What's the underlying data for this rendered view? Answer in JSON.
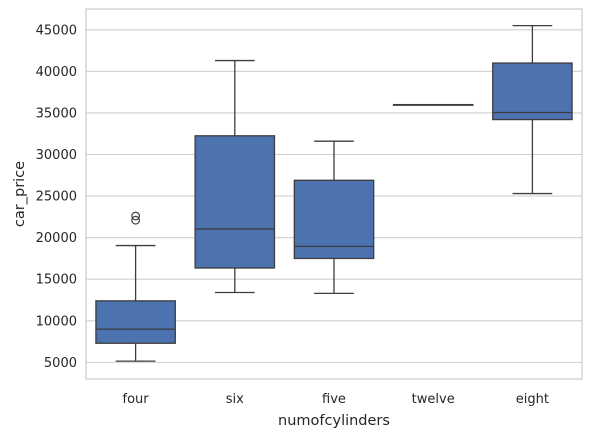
{
  "chart_data": {
    "type": "box",
    "xlabel": "numofcylinders",
    "ylabel": "car_price",
    "categories": [
      "four",
      "six",
      "five",
      "twelve",
      "eight"
    ],
    "ylim": [
      3000,
      47500
    ],
    "yticks": [
      5000,
      10000,
      15000,
      20000,
      25000,
      30000,
      35000,
      40000,
      45000
    ],
    "grid": "horizontal",
    "box_color": "#4c72b0",
    "boxes": [
      {
        "category": "four",
        "whisker_low": 5150,
        "q1": 7300,
        "median": 9000,
        "q3": 12400,
        "whisker_high": 19050,
        "outliers": [
          22100,
          22600
        ]
      },
      {
        "category": "six",
        "whisker_low": 13400,
        "q1": 16350,
        "median": 21050,
        "q3": 32250,
        "whisker_high": 41300,
        "outliers": []
      },
      {
        "category": "five",
        "whisker_low": 13300,
        "q1": 17500,
        "median": 18950,
        "q3": 26900,
        "whisker_high": 31600,
        "outliers": []
      },
      {
        "category": "twelve",
        "whisker_low": 36000,
        "q1": 36000,
        "median": 36000,
        "q3": 36000,
        "whisker_high": 36000,
        "outliers": []
      },
      {
        "category": "eight",
        "whisker_low": 25300,
        "q1": 34200,
        "median": 35050,
        "q3": 41000,
        "whisker_high": 45500,
        "outliers": []
      }
    ]
  }
}
